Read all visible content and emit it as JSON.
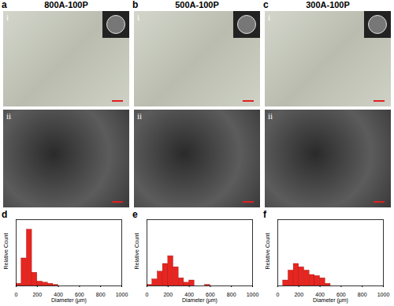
{
  "panels": [
    {
      "label": "a",
      "title": "800A-100P",
      "images": [
        "i",
        "ii"
      ]
    },
    {
      "label": "b",
      "title": "500A-100P",
      "images": [
        "i",
        "ii"
      ]
    },
    {
      "label": "c",
      "title": "300A-100P",
      "images": [
        "i",
        "ii"
      ]
    }
  ],
  "chart_data": [
    {
      "type": "histogram",
      "title": "d",
      "xlabel": "Diameter (μm)",
      "ylabel": "Relative Count",
      "bins": [
        0,
        50,
        100,
        150,
        200,
        250,
        300,
        350,
        400,
        450
      ],
      "values": [
        0.02,
        0.25,
        0.51,
        0.12,
        0.04,
        0.03,
        0.02,
        0.01,
        0
      ],
      "color": "#e8251f",
      "xlim": [
        0,
        1000
      ],
      "xticks": [
        0,
        200,
        400,
        600,
        800,
        1000
      ],
      "ylim": [
        0,
        0.6
      ],
      "tick_labels": "x"
    },
    {
      "type": "histogram",
      "title": "e",
      "xlabel": "Diameter (μm)",
      "ylabel": "Relative Count",
      "bins": [
        0,
        50,
        100,
        150,
        200,
        250,
        300,
        350,
        400,
        450,
        500,
        550,
        600
      ],
      "values": [
        0.01,
        0.06,
        0.13,
        0.2,
        0.27,
        0.17,
        0.07,
        0.03,
        0.05,
        0,
        0,
        0.01
      ],
      "color": "#e8251f",
      "xlim": [
        0,
        1000
      ],
      "xticks": [
        0,
        200,
        400,
        600,
        800,
        1000
      ],
      "ylim": [
        0,
        0.6
      ],
      "tick_labels": "x"
    },
    {
      "type": "histogram",
      "title": "f",
      "xlabel": "Diameter (μm)",
      "ylabel": "Relative Count",
      "bins": [
        50,
        100,
        150,
        200,
        250,
        300,
        350,
        400,
        450,
        500
      ],
      "values": [
        0.05,
        0.14,
        0.2,
        0.17,
        0.14,
        0.1,
        0.09,
        0.07,
        0.02
      ],
      "color": "#e8251f",
      "xlim": [
        0,
        1000
      ],
      "xticks": [
        0,
        200,
        400,
        600,
        800,
        1000
      ],
      "ylim": [
        0,
        0.6
      ],
      "tick_labels": "x"
    }
  ]
}
